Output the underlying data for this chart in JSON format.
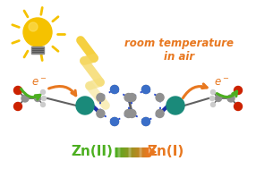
{
  "bg_color": "#ffffff",
  "title_text": "room temperature\nin air",
  "title_color": "#e87820",
  "title_fontsize": 8.5,
  "zn2_text": "Zn(II)",
  "zn2_color": "#4caf20",
  "zn1_text": "Zn(I)",
  "zn1_color": "#e87820",
  "arrow_color": "#e87820",
  "e_minus_color": "#e87820",
  "green_arrow_color": "#4caf20",
  "bulb_body_color": "#f5c200",
  "bulb_ray_color": "#f5c200",
  "lightning_color_top": "#f5d060",
  "lightning_color_bot": "#f5e8a0",
  "teal_atom_color": "#1a8a7a",
  "gray_atom_color": "#909090",
  "blue_bond_color": "#2244cc",
  "dark_blue_bond": "#1a2eaa",
  "red_atom_color": "#cc2200",
  "white_atom_color": "#cccccc",
  "dark_gray_bond": "#606060",
  "figsize": [
    2.86,
    1.89
  ],
  "dpi": 100
}
